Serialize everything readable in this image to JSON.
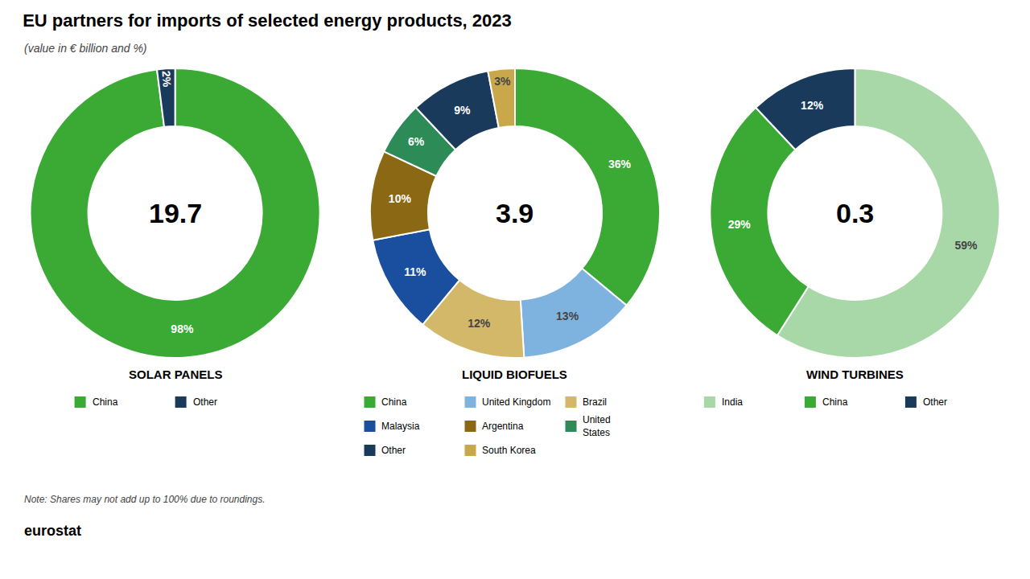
{
  "title": "EU partners for imports of selected energy products, 2023",
  "subtitle": "(value in € billion and %)",
  "note": "Note: Shares may not add up to 100% due to roundings.",
  "annotations": [
    "eurostat"
  ],
  "chart_data": [
    {
      "type": "pie",
      "title": "SOLAR PANELS",
      "total": 19.7,
      "categories": [
        "China",
        "Other"
      ],
      "values": [
        98,
        2
      ],
      "value_labels": [
        "98%",
        "2%"
      ],
      "colors": [
        "#3aaa35",
        "#1a3a5c"
      ],
      "data_labels": true
    },
    {
      "type": "pie",
      "title": "LIQUID BIOFUELS",
      "total": 3.9,
      "categories": [
        "China",
        "United Kingdom",
        "Brazil",
        "Malaysia",
        "Argentina",
        "United\nStates",
        "Other",
        "South Korea"
      ],
      "values": [
        36,
        13,
        12,
        11,
        10,
        6,
        9,
        3
      ],
      "value_labels": [
        "36%",
        "13%",
        "12%",
        "11%",
        "10%",
        "6%",
        "9%",
        "3%"
      ],
      "colors": [
        "#3aaa35",
        "#7eb3e0",
        "#d4b86a",
        "#1a4fa0",
        "#8b6914",
        "#2d8b57",
        "#1a3a5c",
        "#c8a84b"
      ],
      "data_labels": true
    },
    {
      "type": "pie",
      "title": "WIND TURBINES",
      "total": 0.3,
      "categories": [
        "India",
        "China",
        "Other"
      ],
      "values": [
        59,
        29,
        12
      ],
      "value_labels": [
        "59%",
        "29%",
        "12%"
      ],
      "colors": [
        "#a8d8a8",
        "#3aaa35",
        "#1a3a5c"
      ],
      "data_labels": true
    }
  ]
}
